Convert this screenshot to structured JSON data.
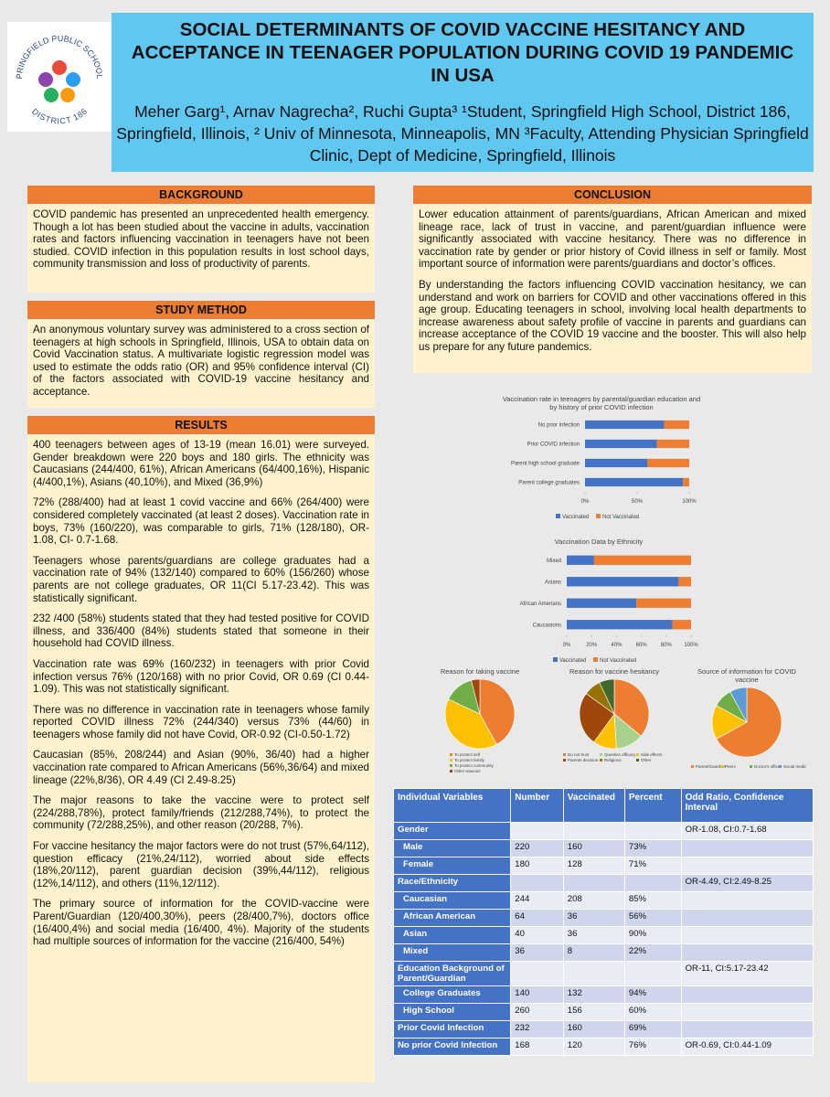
{
  "header": {
    "logo_top": "SPRINGFIELD PUBLIC SCHOOLS",
    "logo_bottom": "DISTRICT 186",
    "title": "SOCIAL DETERMINANTS OF  COVID VACCINE HESITANCY AND ACCEPTANCE IN TEENAGER POPULATION DURING COVID 19 PANDEMIC IN USA",
    "authors": "Meher Garg¹, Arnav Nagrecha², Ruchi Gupta³   ¹Student, Springfield High School, District 186, Springfield, Illinois, ² Univ of Minnesota, Minneapolis, MN ³Faculty, Attending Physician Springfield Clinic, Dept of Medicine, Springfield, Illinois"
  },
  "background": {
    "heading": "BACKGROUND",
    "text": "COVID pandemic has presented an unprecedented health emergency. Though a lot has been studied about the vaccine in adults, vaccination rates and factors influencing vaccination in teenagers have not been studied. COVID infection in this population results in lost school days, community transmission and loss of productivity of parents."
  },
  "study_method": {
    "heading": "STUDY METHOD",
    "text": "An anonymous voluntary survey was administered to a cross section of teenagers at high schools in Springfield, Illinois, USA to obtain data on Covid Vaccination status. A multivariate logistic regression model was used to estimate the  odds ratio (OR) and 95% confidence interval (CI) of the factors associated with COVID-19 vaccine hesitancy and acceptance."
  },
  "results": {
    "heading": "RESULTS",
    "paragraphs": [
      "400 teenagers between ages of 13-19 (mean 16.01) were surveyed. Gender breakdown were 220 boys and 180 girls. The ethnicity was Caucasians (244/400, 61%), African Americans (64/400,16%), Hispanic (4/400,1%), Asians (40,10%), and Mixed (36,9%)",
      "72% (288/400) had at least 1 covid vaccine and 66% (264/400) were considered completely vaccinated (at least 2 doses). Vaccination rate in boys, 73% (160/220), was comparable to girls, 71% (128/180), OR-1.08, CI- 0.7-1.68.",
      "Teenagers whose parents/guardians are college graduates had a vaccination rate of 94% (132/140) compared to 60% (156/260) whose parents are not college graduates, OR 11(CI 5.17-23.42).  This was statistically significant.",
      "232 /400 (58%) students stated that they had tested positive for COVID illness, and 336/400 (84%) students stated that someone in their household had COVID illness.",
      "Vaccination rate was 69% (160/232) in teenagers with prior Covid infection versus 76% (120/168) with no prior Covid, OR 0.69 (CI 0.44-1.09). This was not statistically significant.",
      "There was no difference in vaccination rate in teenagers whose family reported COVID illness 72% (244/340) versus 73% (44/60) in teenagers whose family did not have Covid, OR-0.92 (CI-0.50-1.72)",
      "Caucasian (85%, 208/244) and Asian (90%, 36/40) had a higher vaccination rate compared to African Americans (56%,36/64) and mixed lineage (22%,8/36), OR 4.49 (CI 2.49-8.25)",
      "The major reasons to take the vaccine were to protect self (224/288,78%), protect family/friends (212/288,74%), to protect the community (72/288,25%), and other reason (20/288, 7%).",
      "For vaccine hesitancy the major factors were do not trust (57%,64/112), question efficacy (21%,24/112), worried about side effects (18%,20/112), parent guardian decision (39%,44/112), religious (12%,14/112), and others (11%,12/112).",
      "The primary source of information for the COVID-vaccine were Parent/Guardian (120/400,30%), peers (28/400,7%), doctors office (16/400,4%) and social media (16/400, 4%). Majority of the students had multiple sources of information for the vaccine (216/400, 54%)"
    ]
  },
  "conclusion": {
    "heading": "CONCLUSION",
    "paragraphs": [
      "Lower education attainment of parents/guardians, African American and mixed lineage race, lack of trust in vaccine, and parent/guardian influence were significantly associated with vaccine hesitancy. There was no difference in vaccination rate by gender or prior history of Covid illness in self or family. Most important source of information were parents/guardians and doctor’s offices.",
      "By understanding the factors influencing COVID vaccination hesitancy, we can understand and work on barriers for COVID and other vaccinations offered in this age group. Educating teenagers in school, involving local health departments to increase awareness about safety profile of vaccine in  parents and guardians can increase acceptance of the COVID 19 vaccine and the booster. This will also help us prepare for any future pandemics."
    ]
  },
  "chart_data": [
    {
      "type": "bar",
      "orientation": "horizontal",
      "stacked": true,
      "title": "Vaccination rate in teenagers by parental/guardian education and by history of prior COVID infection",
      "categories": [
        "No prior infection",
        "Prior COVID infection",
        "Parent high school graduate",
        "Parent college graduates"
      ],
      "series": [
        {
          "name": "Vaccinated",
          "color": "#4472c4",
          "values": [
            76,
            69,
            60,
            94
          ]
        },
        {
          "name": "Not Vaccinated",
          "color": "#ed7d31",
          "values": [
            24,
            31,
            40,
            6
          ]
        }
      ],
      "xlim": [
        0,
        100
      ],
      "xticks": [
        {
          "value": 0,
          "label": "0%"
        },
        {
          "value": 50,
          "label": "50%"
        },
        {
          "value": 100,
          "label": "100%"
        }
      ],
      "grid": false,
      "legend": "bottom"
    },
    {
      "type": "bar",
      "orientation": "horizontal",
      "stacked": true,
      "title": "Vaccination Data by Ethnicity",
      "categories": [
        "Mixed",
        "Asians",
        "African Amerians",
        "Caucasions"
      ],
      "series": [
        {
          "name": "Vaccinated",
          "color": "#4472c4",
          "values": [
            22,
            90,
            56,
            85
          ]
        },
        {
          "name": "Not Vaccinated",
          "color": "#ed7d31",
          "values": [
            78,
            10,
            44,
            15
          ]
        }
      ],
      "xlim": [
        0,
        100
      ],
      "xticks": [
        {
          "value": 0,
          "label": "0%"
        },
        {
          "value": 20,
          "label": "20%"
        },
        {
          "value": 40,
          "label": "40%"
        },
        {
          "value": 60,
          "label": "60%"
        },
        {
          "value": 80,
          "label": "80%"
        },
        {
          "value": 100,
          "label": "100%"
        }
      ],
      "grid": false,
      "legend": "bottom"
    },
    {
      "type": "pie",
      "title": "Reason for taking vaccine",
      "categories": [
        "To protect self",
        "To protect family",
        "To protect community",
        "Other reasons"
      ],
      "values": [
        42,
        40,
        14,
        4
      ],
      "colors": [
        "#ed7d31",
        "#ffc000",
        "#70ad47",
        "#9e480e"
      ],
      "legend": "bottom"
    },
    {
      "type": "pie",
      "title": "Reason for vaccine hesitancy",
      "categories": [
        "Do not trust",
        "Question efficacy",
        "Side effects",
        "Parents decision",
        "Religious",
        "Other"
      ],
      "values": [
        36,
        13,
        11,
        25,
        8,
        7
      ],
      "colors": [
        "#ed7d31",
        "#a9d18e",
        "#ffc000",
        "#9e480e",
        "#997300",
        "#43682b"
      ],
      "legend": "bottom"
    },
    {
      "type": "pie",
      "title": "Source of information for COVID vaccine",
      "categories": [
        "Parent/Guardian",
        "Peers",
        "Doctor's office",
        "Social media"
      ],
      "values": [
        67,
        16,
        9,
        8
      ],
      "colors": [
        "#ed7d31",
        "#ffc000",
        "#70ad47",
        "#5b9bd5"
      ],
      "legend": "bottom"
    }
  ],
  "table": {
    "header": [
      "Individual Variables",
      "Number",
      "Vaccinated",
      "Percent",
      "Odd Ratio, Confidence Interval"
    ],
    "rows": [
      [
        "Gender",
        "",
        "",
        "",
        "OR-1.08, CI:0.7-1.68"
      ],
      [
        "Male",
        "220",
        "160",
        "73%",
        ""
      ],
      [
        "Female",
        "180",
        "128",
        "71%",
        ""
      ],
      [
        "Race/Ethnicity",
        "",
        "",
        "",
        "OR-4.49, CI:2.49-8.25"
      ],
      [
        "Caucasian",
        "244",
        "208",
        "85%",
        ""
      ],
      [
        "African American",
        "64",
        "36",
        "56%",
        ""
      ],
      [
        "Asian",
        "40",
        "36",
        "90%",
        ""
      ],
      [
        "Mixed",
        "36",
        "8",
        "22%",
        ""
      ],
      [
        "Education Background of Parent/Guardian",
        "",
        "",
        "",
        "OR-11, CI:5.17-23.42"
      ],
      [
        "College Graduates",
        "140",
        "132",
        "94%",
        ""
      ],
      [
        "High School",
        "260",
        "156",
        "60%",
        ""
      ],
      [
        "Prior Covid Infection",
        "232",
        "160",
        "69%",
        ""
      ],
      [
        "No prior Covid Infection",
        "168",
        "120",
        "76%",
        "OR-0.69, CI:0.44-1.09"
      ]
    ]
  }
}
